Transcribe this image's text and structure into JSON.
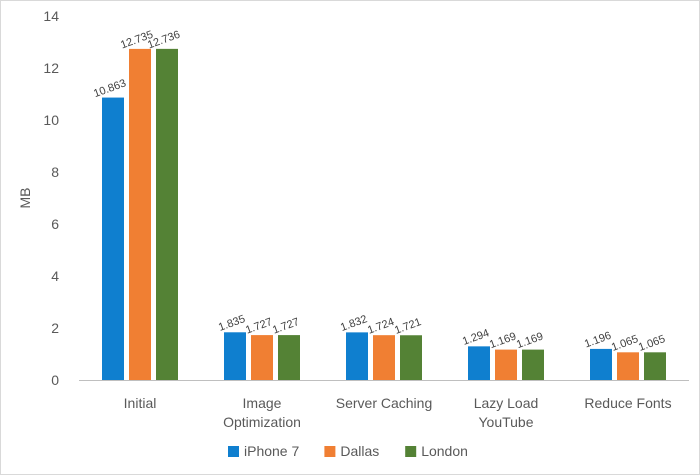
{
  "chart_data": {
    "type": "bar",
    "categories": [
      [
        "Initial"
      ],
      [
        "Image",
        "Optimization"
      ],
      [
        "Server Caching"
      ],
      [
        "Lazy Load",
        "YouTube"
      ],
      [
        "Reduce Fonts"
      ]
    ],
    "series": [
      {
        "name": "iPhone 7",
        "color": "#0f7fcf",
        "values": [
          10.863,
          1.835,
          1.832,
          1.294,
          1.196
        ],
        "labels": [
          "10.863",
          "1.835",
          "1.832",
          "1.294",
          "1.196"
        ]
      },
      {
        "name": "Dallas",
        "color": "#f07f33",
        "values": [
          12.735,
          1.727,
          1.724,
          1.169,
          1.065
        ],
        "labels": [
          "12.735",
          "1.727",
          "1.724",
          "1.169",
          "1.065"
        ]
      },
      {
        "name": "London",
        "color": "#548235",
        "values": [
          12.736,
          1.727,
          1.721,
          1.169,
          1.065
        ],
        "labels": [
          "12.736",
          "1.727",
          "1.721",
          "1.169",
          "1.065"
        ]
      }
    ],
    "ylabel": "MB",
    "ylim": [
      0,
      14
    ],
    "yticks": [
      0,
      2,
      4,
      6,
      8,
      10,
      12,
      14
    ],
    "grid": false,
    "legend_position": "bottom",
    "data_label_rotation": "diagonal"
  }
}
